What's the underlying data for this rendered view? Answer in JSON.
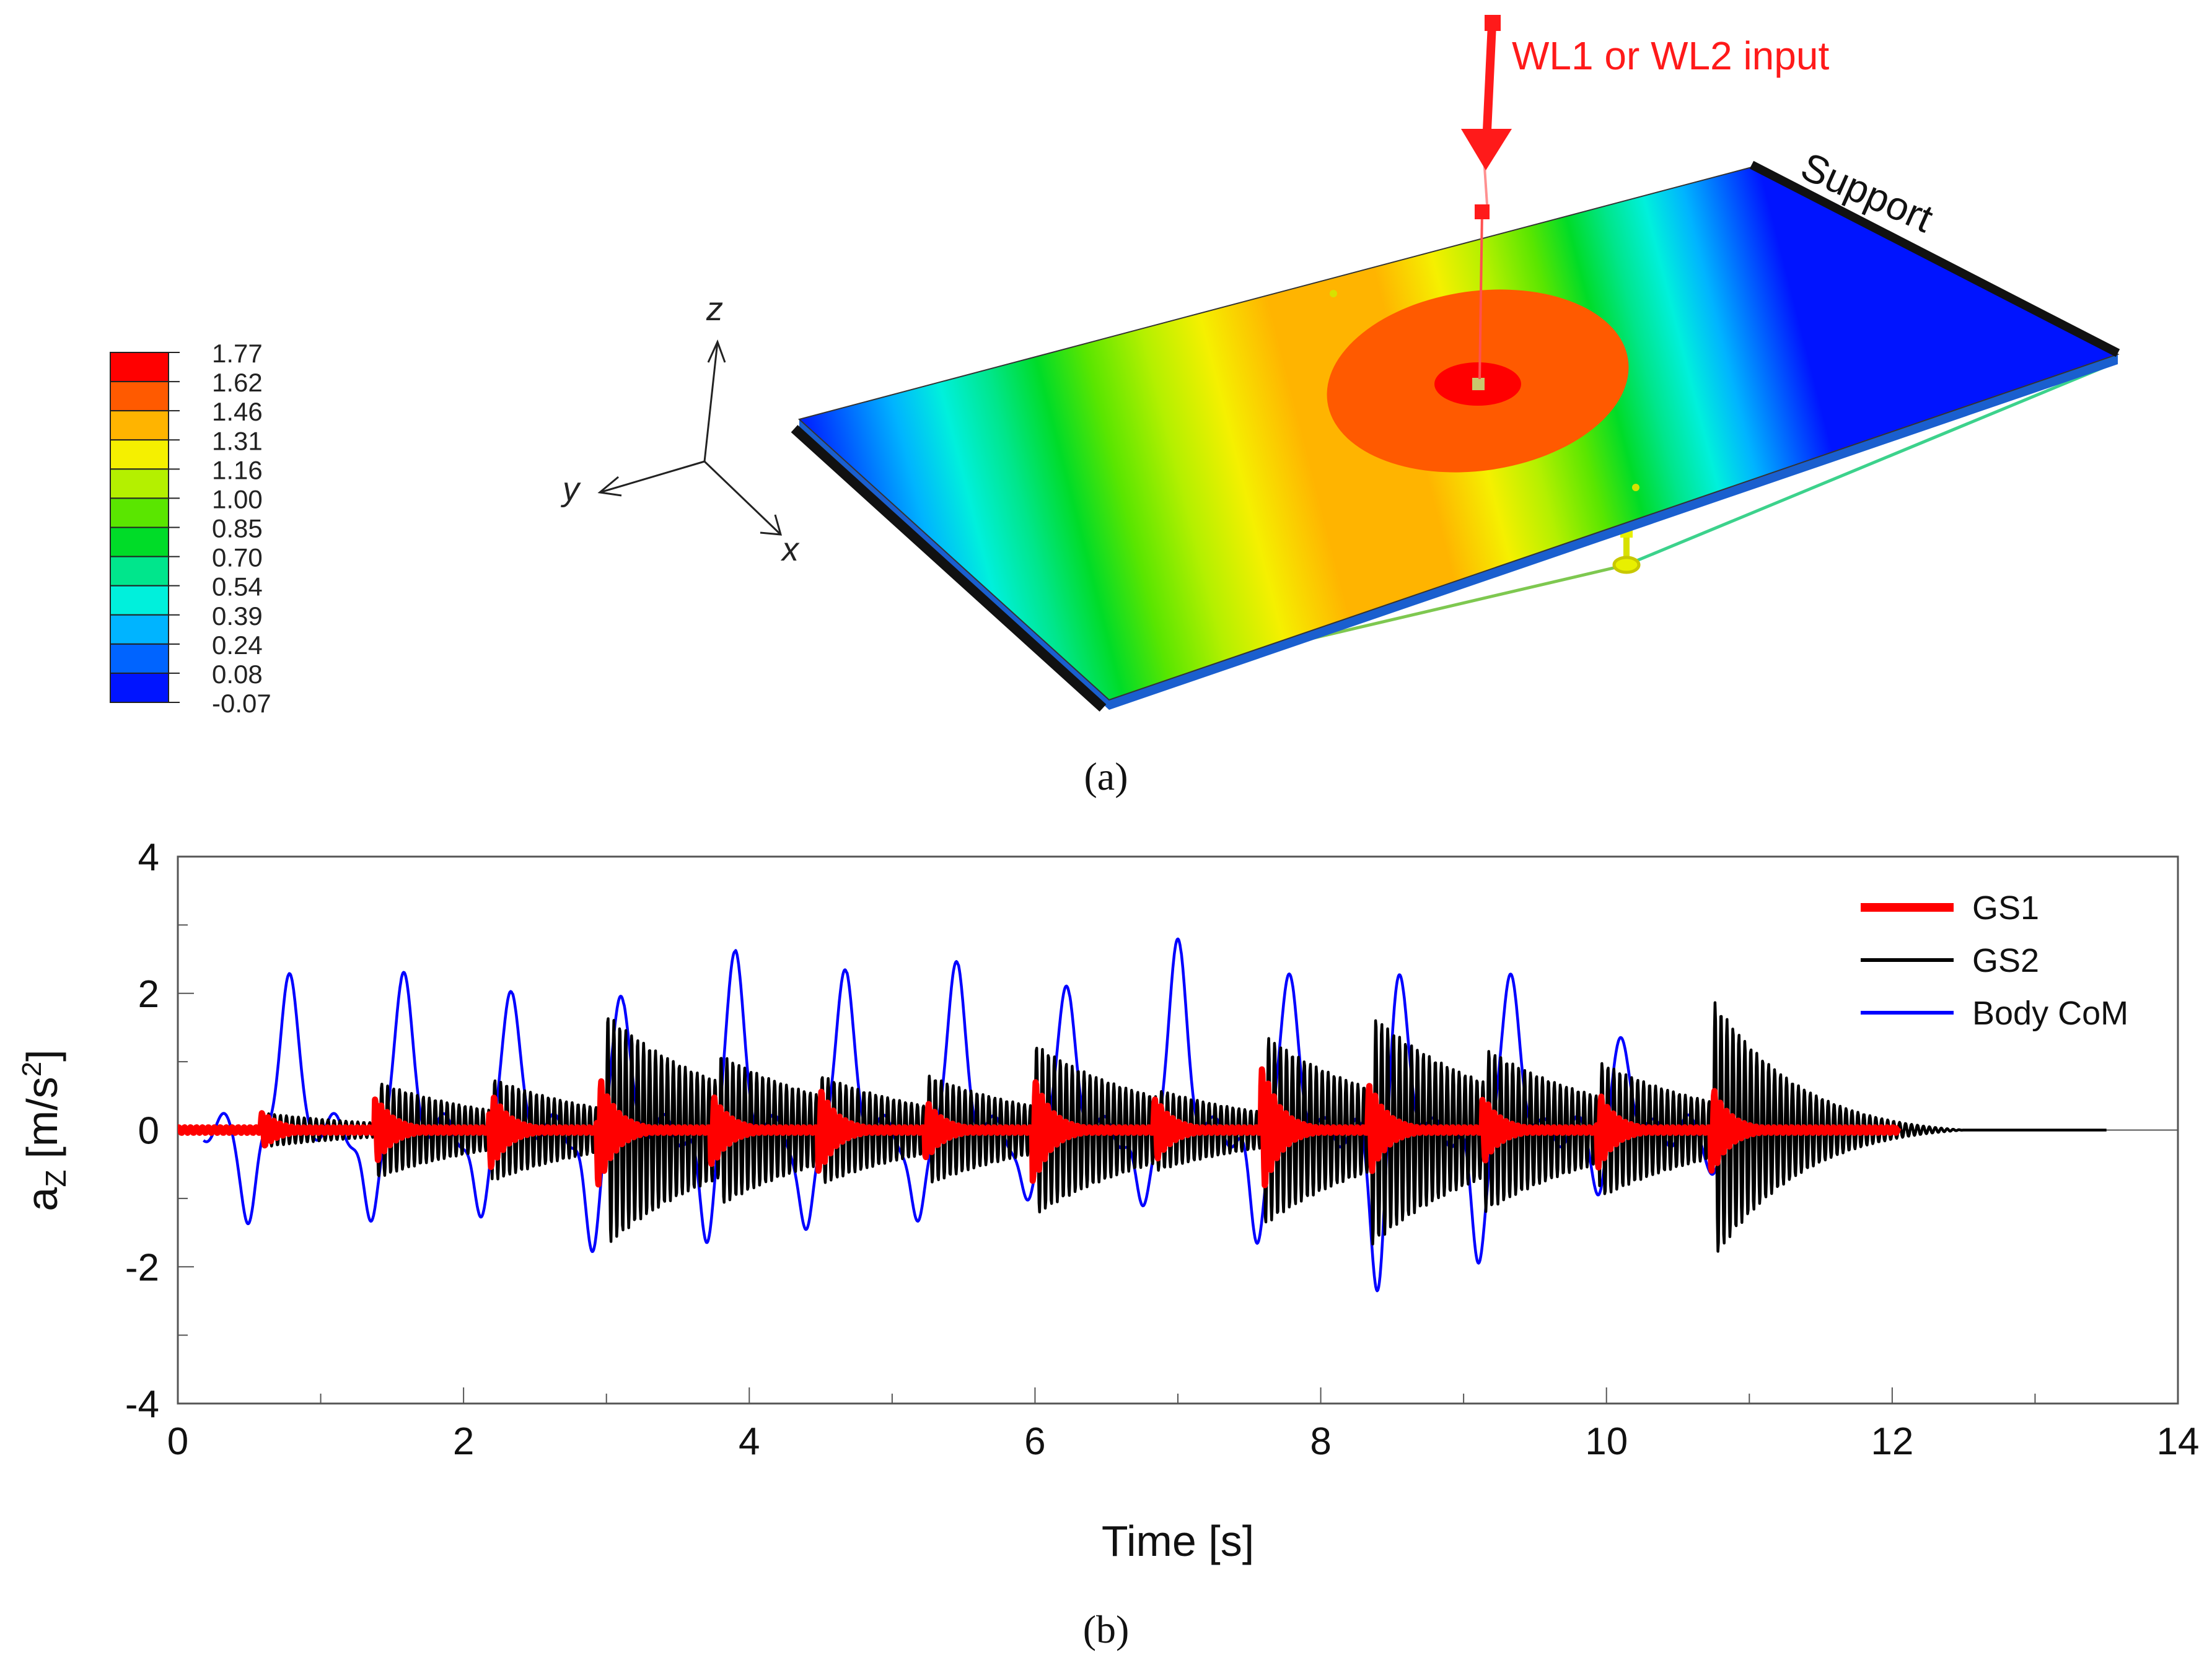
{
  "panel_a": {
    "caption": "(a)",
    "legend_values": [
      "1.77",
      "1.62",
      "1.46",
      "1.31",
      "1.16",
      "1.00",
      "0.85",
      "0.70",
      "0.54",
      "0.39",
      "0.24",
      "0.08",
      "-0.07"
    ],
    "legend_colors": [
      "#ff0000",
      "#ff5a00",
      "#ffb400",
      "#f5f000",
      "#b4f000",
      "#5ae600",
      "#00dc28",
      "#00e68c",
      "#00f0dc",
      "#00b4ff",
      "#0064ff",
      "#0014ff"
    ],
    "axis_labels": {
      "z": "z",
      "y": "y",
      "x": "x"
    },
    "input_label": "WL1 or WL2 input",
    "support_label": "Support",
    "colors": {
      "input": "#ff1a1a",
      "support": "#111111"
    }
  },
  "chart_data": {
    "type": "line",
    "caption": "(b)",
    "xlabel": "Time [s]",
    "ylabel": "a",
    "ylabel_sub": "Z",
    "ylabel_unit_pre": "[m/s",
    "ylabel_unit_sup": "2",
    "ylabel_unit_post": "]",
    "xlim": [
      0,
      14
    ],
    "ylim": [
      -4,
      4
    ],
    "xticks": [
      0,
      2,
      4,
      6,
      8,
      10,
      12,
      14
    ],
    "yticks": [
      -4,
      -2,
      0,
      2,
      4
    ],
    "legend_position": "top-right",
    "series": [
      {
        "name": "GS1",
        "color": "#ff0000",
        "width": 10,
        "t_end": 12.05,
        "freq": 24,
        "baseline_amp": 0.04,
        "bursts": [
          [
            0.6,
            0.25
          ],
          [
            1.4,
            0.45
          ],
          [
            2.2,
            0.55
          ],
          [
            2.95,
            0.8
          ],
          [
            3.75,
            0.5
          ],
          [
            4.5,
            0.6
          ],
          [
            5.25,
            0.4
          ],
          [
            6.0,
            0.75
          ],
          [
            6.85,
            0.45
          ],
          [
            7.6,
            0.9
          ],
          [
            8.35,
            0.65
          ],
          [
            9.15,
            0.45
          ],
          [
            9.95,
            0.55
          ],
          [
            10.75,
            0.6
          ]
        ]
      },
      {
        "name": "GS2",
        "color": "#000000",
        "width": 4.5,
        "t_end": 13.5,
        "decay_end": 12.5,
        "freq": 24,
        "steps": [
          [
            0.6,
            0.25
          ],
          [
            1.4,
            0.7
          ],
          [
            2.2,
            0.75
          ],
          [
            3.0,
            1.7
          ],
          [
            3.8,
            1.1
          ],
          [
            4.5,
            0.8
          ],
          [
            5.25,
            0.8
          ],
          [
            6.0,
            1.25
          ],
          [
            6.85,
            0.6
          ],
          [
            7.6,
            1.4
          ],
          [
            8.35,
            1.7
          ],
          [
            9.15,
            1.2
          ],
          [
            9.95,
            1.0
          ],
          [
            10.75,
            1.9
          ]
        ]
      },
      {
        "name": "Body CoM",
        "color": "#0000ff",
        "width": 4.5,
        "t_start": 0.18,
        "t_end": 10.95,
        "peaks": [
          [
            0.78,
            2.28
          ],
          [
            1.58,
            2.27
          ],
          [
            2.33,
            2.02
          ],
          [
            3.1,
            1.95
          ],
          [
            3.9,
            2.6
          ],
          [
            4.67,
            2.33
          ],
          [
            5.45,
            2.45
          ],
          [
            6.22,
            2.09
          ],
          [
            7.0,
            2.78
          ],
          [
            7.78,
            2.27
          ],
          [
            8.55,
            2.28
          ],
          [
            9.33,
            2.27
          ],
          [
            10.1,
            1.35
          ]
        ],
        "troughs": [
          [
            0.5,
            -1.3
          ],
          [
            1.35,
            -1.45
          ],
          [
            2.12,
            -1.4
          ],
          [
            2.9,
            -1.9
          ],
          [
            3.7,
            -1.7
          ],
          [
            4.4,
            -1.6
          ],
          [
            5.18,
            -1.5
          ],
          [
            5.95,
            -1.2
          ],
          [
            6.75,
            -1.25
          ],
          [
            7.55,
            -1.7
          ],
          [
            8.4,
            -2.35
          ],
          [
            9.1,
            -1.95
          ],
          [
            9.95,
            -0.9
          ],
          [
            10.75,
            -0.6
          ]
        ]
      }
    ]
  }
}
